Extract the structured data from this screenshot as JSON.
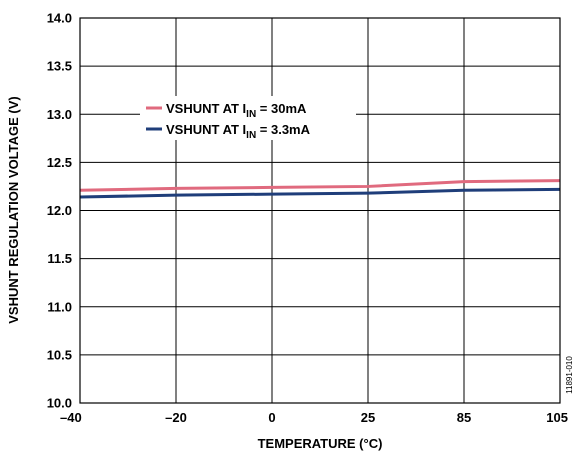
{
  "chart_data": {
    "type": "line",
    "categories": [
      "–40",
      "–20",
      "0",
      "25",
      "85",
      "105"
    ],
    "ylim": [
      10.0,
      14.0
    ],
    "yticks": [
      "10.0",
      "10.5",
      "11.0",
      "11.5",
      "12.0",
      "12.5",
      "13.0",
      "13.5",
      "14.0"
    ],
    "xlabel": "TEMPERATURE (°C)",
    "ylabel": "VSHUNT REGULATION VOLTAGE (V)",
    "grid": true,
    "legend_position": "upper-left",
    "series": [
      {
        "name_prefix": "VSHUNT AT I",
        "name_sub": "IN",
        "name_suffix": " = 30mA",
        "color": "#e06a7e",
        "values": [
          12.21,
          12.23,
          12.24,
          12.25,
          12.3,
          12.31
        ]
      },
      {
        "name_prefix": "VSHUNT AT I",
        "name_sub": "IN",
        "name_suffix": " = 3.3mA",
        "color": "#1f3e7a",
        "values": [
          12.14,
          12.16,
          12.17,
          12.18,
          12.21,
          12.22
        ]
      }
    ],
    "figure_code": "11891-010"
  }
}
